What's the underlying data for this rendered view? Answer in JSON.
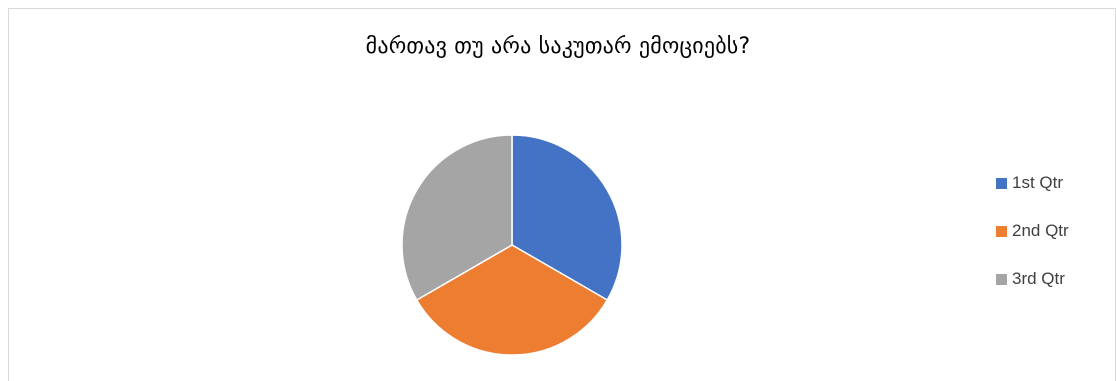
{
  "chart_data": {
    "type": "pie",
    "title": "მართავ  თუ არა საკუთარ ემოციებს?",
    "categories": [
      "1st Qtr",
      "2nd Qtr",
      "3rd Qtr"
    ],
    "values": [
      1,
      1,
      1
    ],
    "colors": [
      "#4472c4",
      "#ed7d31",
      "#a5a5a5"
    ],
    "legend": {
      "position": "right",
      "entries": [
        "1st Qtr",
        "2nd Qtr",
        "3rd Qtr"
      ]
    }
  }
}
